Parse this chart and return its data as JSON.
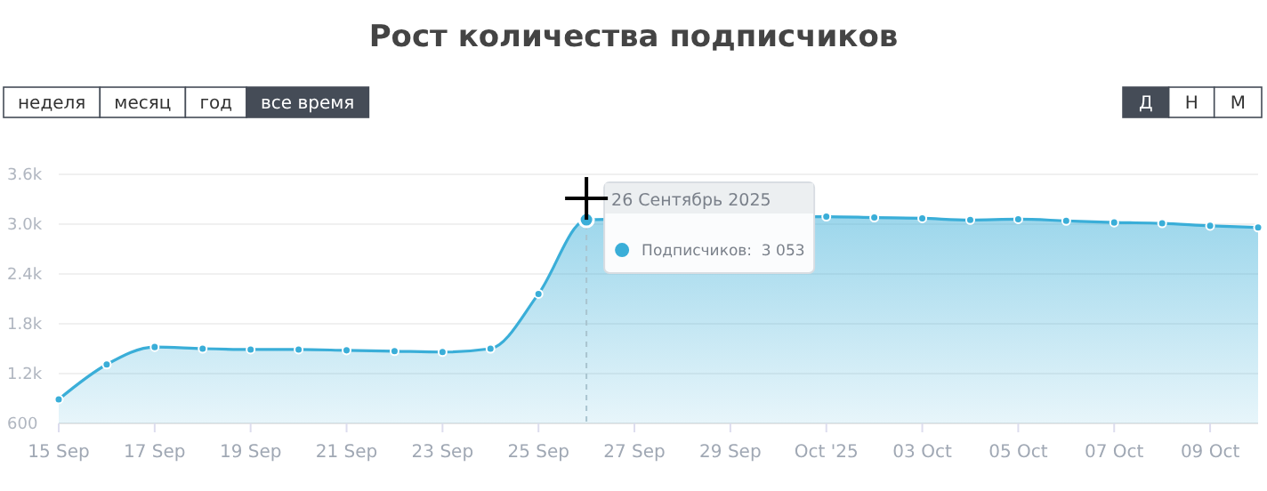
{
  "chart_data": {
    "type": "area",
    "title": "Рост количества подписчиков",
    "x": [
      "2025-09-15",
      "2025-09-16",
      "2025-09-17",
      "2025-09-18",
      "2025-09-19",
      "2025-09-20",
      "2025-09-21",
      "2025-09-22",
      "2025-09-23",
      "2025-09-24",
      "2025-09-25",
      "2025-09-26",
      "2025-09-27",
      "2025-09-28",
      "2025-09-29",
      "2025-09-30",
      "2025-10-01",
      "2025-10-02",
      "2025-10-03",
      "2025-10-04",
      "2025-10-05",
      "2025-10-06",
      "2025-10-07",
      "2025-10-08",
      "2025-10-09",
      "2025-10-10"
    ],
    "series": [
      {
        "color": "#3aaed8",
        "values": [
          890,
          1310,
          1520,
          1500,
          1490,
          1490,
          1480,
          1470,
          1460,
          1500,
          2160,
          3053,
          null,
          null,
          null,
          null,
          3090,
          3080,
          3070,
          3050,
          3060,
          3040,
          3020,
          3010,
          2980,
          2960
        ]
      }
    ],
    "xlim": [
      "2025-09-15",
      "2025-10-10"
    ],
    "xticks": [
      {
        "value": "2025-09-15",
        "label": "15 Sep"
      },
      {
        "value": "2025-09-17",
        "label": "17 Sep"
      },
      {
        "value": "2025-09-19",
        "label": "19 Sep"
      },
      {
        "value": "2025-09-21",
        "label": "21 Sep"
      },
      {
        "value": "2025-09-23",
        "label": "23 Sep"
      },
      {
        "value": "2025-09-25",
        "label": "25 Sep"
      },
      {
        "value": "2025-09-27",
        "label": "27 Sep"
      },
      {
        "value": "2025-09-29",
        "label": "29 Sep"
      },
      {
        "value": "2025-10-01",
        "label": "Oct '25"
      },
      {
        "value": "2025-10-03",
        "label": "03 Oct"
      },
      {
        "value": "2025-10-05",
        "label": "05 Oct"
      },
      {
        "value": "2025-10-07",
        "label": "07 Oct"
      },
      {
        "value": "2025-10-09",
        "label": "09 Oct"
      }
    ],
    "ylim": [
      600,
      3600
    ],
    "yticks": [
      600,
      {
        "value": 1200,
        "label": "1.2k"
      },
      {
        "value": 1800,
        "label": "1.8k"
      },
      {
        "value": 2400,
        "label": "2.4k"
      },
      {
        "value": 3000,
        "label": "3.0k"
      },
      {
        "value": 3600,
        "label": "3.6k"
      }
    ],
    "grid": "y",
    "marker": "circle",
    "ref_lines": [
      {
        "axis": "x",
        "value": "2025-09-26",
        "line_style": "dashed",
        "color": "#a9c4cf"
      }
    ],
    "annotations": [
      "неделя",
      "месяц",
      "год",
      "все время",
      "Д",
      "Н",
      "М",
      {
        "text": "26 Сентябрь 2025",
        "x": "2025-09-26",
        "y": 3053
      },
      "Подписчиков:  3 053"
    ]
  }
}
